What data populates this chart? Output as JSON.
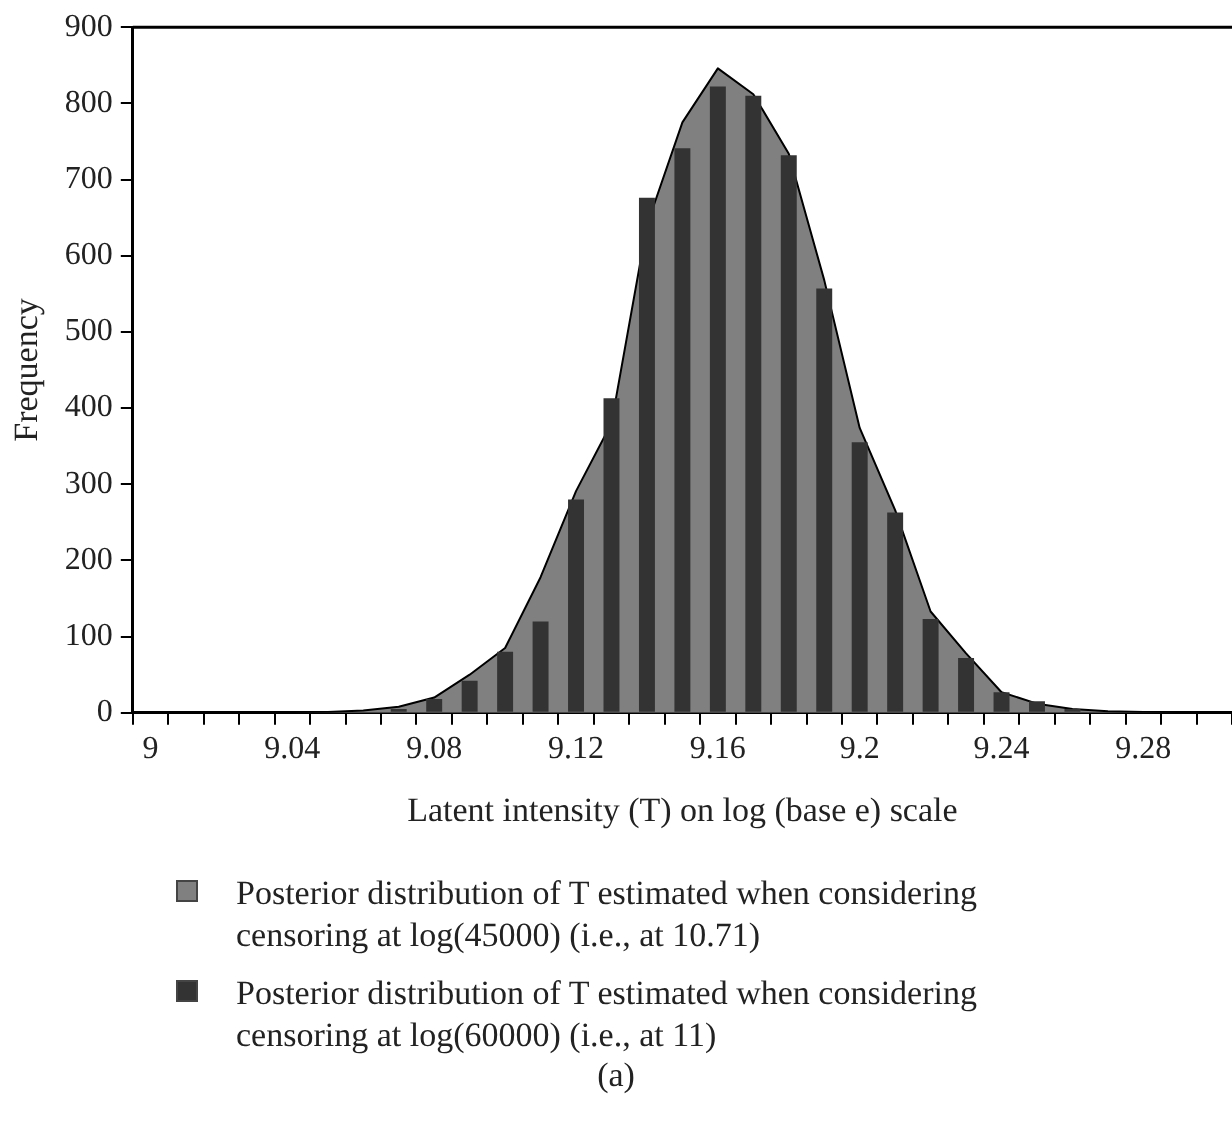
{
  "chart_data": {
    "type": "bar",
    "xlabel": "Latent intensity (T) on log (base e) scale",
    "ylabel": "Frequency",
    "categories": [
      "9",
      null,
      null,
      null,
      "9.04",
      null,
      null,
      null,
      "9.08",
      null,
      null,
      null,
      "9.12",
      null,
      null,
      null,
      "9.16",
      null,
      null,
      null,
      "9.2",
      null,
      null,
      null,
      "9.24",
      null,
      null,
      null,
      "9.28",
      null,
      null
    ],
    "series": [
      {
        "name": "Posterior distribution of T estimated when considering censoring at log(45000) (i.e., at 10.71)",
        "type": "area",
        "color": "#808080",
        "values": [
          0,
          0,
          0,
          0,
          0,
          1,
          3,
          8,
          20,
          50,
          85,
          178,
          291,
          380,
          640,
          775,
          846,
          812,
          734,
          568,
          374,
          266,
          133,
          78,
          27,
          12,
          5,
          2,
          1,
          0,
          0
        ]
      },
      {
        "name": "Posterior distribution of T estimated when considering censoring at log(60000) (i.e., at 11)",
        "color": "#333333",
        "values": [
          0,
          0,
          0,
          0,
          0,
          0,
          null,
          5,
          18,
          42,
          80,
          120,
          280,
          413,
          676,
          741,
          822,
          810,
          732,
          557,
          355,
          263,
          123,
          72,
          27,
          15,
          5,
          null,
          0,
          0,
          0
        ]
      }
    ],
    "ylim": [
      0,
      900
    ],
    "yticks": [
      0,
      100,
      200,
      300,
      400,
      500,
      600,
      700,
      800,
      900
    ],
    "grid": false,
    "legend": "bottom",
    "annotations": [
      "(a)"
    ]
  }
}
